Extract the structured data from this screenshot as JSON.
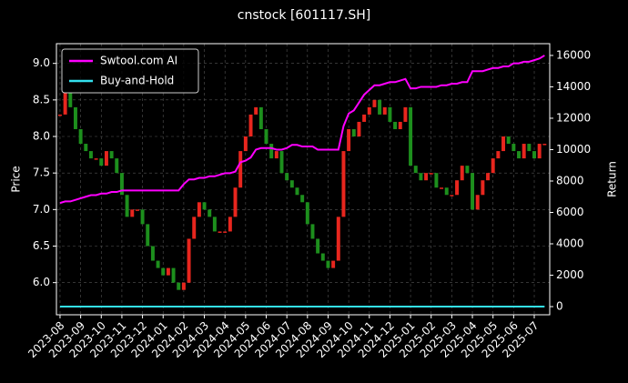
{
  "chart_data": {
    "type": "candlestick",
    "title": "cnstock [601117.SH]",
    "ylabel": "Price",
    "y2label": "Return",
    "price": {
      "values": [
        8.3,
        8.6,
        8.4,
        8.1,
        7.9,
        7.8,
        7.7,
        7.7,
        7.6,
        7.8,
        7.7,
        7.5,
        7.2,
        6.9,
        7.0,
        7.0,
        6.8,
        6.5,
        6.3,
        6.2,
        6.1,
        6.2,
        6.0,
        5.9,
        6.0,
        6.6,
        6.9,
        7.1,
        7.0,
        6.9,
        6.7,
        6.7,
        6.7,
        6.9,
        7.3,
        7.8,
        8.0,
        8.3,
        8.4,
        8.1,
        7.9,
        7.7,
        7.8,
        7.5,
        7.4,
        7.3,
        7.2,
        7.1,
        6.8,
        6.6,
        6.4,
        6.3,
        6.2,
        6.3,
        6.9,
        7.8,
        8.1,
        8.0,
        8.2,
        8.3,
        8.4,
        8.5,
        8.3,
        8.4,
        8.2,
        8.1,
        8.2,
        8.4,
        7.6,
        7.5,
        7.4,
        7.5,
        7.5,
        7.3,
        7.3,
        7.2,
        7.2,
        7.4,
        7.6,
        7.5,
        7.0,
        7.2,
        7.4,
        7.5,
        7.7,
        7.8,
        8.0,
        7.9,
        7.8,
        7.7,
        7.9,
        7.8,
        7.7,
        7.9,
        7.9
      ],
      "up_color": "#e8261e",
      "down_color": "#1d8f1d"
    },
    "series": [
      {
        "name": "Swtool.com AI",
        "color": "#ff00ff",
        "axis": "y2",
        "values": [
          6600,
          6700,
          6700,
          6800,
          6900,
          7000,
          7100,
          7100,
          7200,
          7200,
          7300,
          7300,
          7400,
          7400,
          7400,
          7400,
          7400,
          7400,
          7400,
          7400,
          7400,
          7400,
          7400,
          7400,
          7800,
          8100,
          8100,
          8200,
          8200,
          8300,
          8300,
          8400,
          8500,
          8500,
          8600,
          9200,
          9300,
          9500,
          10000,
          10100,
          10100,
          10100,
          10000,
          10000,
          10100,
          10300,
          10300,
          10200,
          10200,
          10200,
          10000,
          10000,
          10000,
          10000,
          10000,
          11500,
          12300,
          12500,
          13000,
          13500,
          13800,
          14100,
          14100,
          14200,
          14300,
          14300,
          14400,
          14500,
          13900,
          13900,
          14000,
          14000,
          14000,
          14000,
          14100,
          14100,
          14200,
          14200,
          14300,
          14300,
          15000,
          15000,
          15000,
          15100,
          15200,
          15200,
          15300,
          15300,
          15500,
          15500,
          15600,
          15600,
          15700,
          15800,
          16000
        ]
      },
      {
        "name": "Buy-and-Hold",
        "color": "#33e0ee",
        "axis": "y2",
        "values": [
          0,
          0,
          0,
          0,
          0,
          0,
          0,
          0,
          0,
          0,
          0,
          0,
          0,
          0,
          0,
          0,
          0,
          0,
          0,
          0,
          0,
          0,
          0,
          0,
          0,
          0,
          0,
          0,
          0,
          0,
          0,
          0,
          0,
          0,
          0,
          0,
          0,
          0,
          0,
          0,
          0,
          0,
          0,
          0,
          0,
          0,
          0,
          0,
          0,
          0,
          0,
          0,
          0,
          0,
          0,
          0,
          0,
          0,
          0,
          0,
          0,
          0,
          0,
          0,
          0,
          0,
          0,
          0,
          0,
          0,
          0,
          0,
          0,
          0,
          0,
          0,
          0,
          0,
          0,
          0,
          0,
          0,
          0,
          0,
          0,
          0,
          0,
          0,
          0,
          0,
          0,
          0,
          0,
          0,
          0
        ]
      }
    ],
    "xlim": [
      -0.7,
      95
    ],
    "xticks": [
      {
        "value": 0,
        "label": "2023-08"
      },
      {
        "value": 4,
        "label": "2023-09"
      },
      {
        "value": 8,
        "label": "2023-10"
      },
      {
        "value": 12,
        "label": "2023-11"
      },
      {
        "value": 16,
        "label": "2023-12"
      },
      {
        "value": 20,
        "label": "2024-01"
      },
      {
        "value": 24,
        "label": "2024-02"
      },
      {
        "value": 28,
        "label": "2024-03"
      },
      {
        "value": 32,
        "label": "2024-04"
      },
      {
        "value": 36,
        "label": "2024-05"
      },
      {
        "value": 40,
        "label": "2024-06"
      },
      {
        "value": 44,
        "label": "2024-07"
      },
      {
        "value": 48,
        "label": "2024-08"
      },
      {
        "value": 52,
        "label": "2024-09"
      },
      {
        "value": 56,
        "label": "2024-10"
      },
      {
        "value": 60,
        "label": "2024-11"
      },
      {
        "value": 64,
        "label": "2024-12"
      },
      {
        "value": 68,
        "label": "2025-01"
      },
      {
        "value": 72,
        "label": "2025-02"
      },
      {
        "value": 76,
        "label": "2025-03"
      },
      {
        "value": 80,
        "label": "2025-04"
      },
      {
        "value": 84,
        "label": "2025-05"
      },
      {
        "value": 88,
        "label": "2025-06"
      },
      {
        "value": 92,
        "label": "2025-07"
      }
    ],
    "ylim": [
      5.56,
      9.27
    ],
    "yticks": [
      {
        "value": 6,
        "label": "6.0"
      },
      {
        "value": 6.5,
        "label": "6.5"
      },
      {
        "value": 7,
        "label": "7.0"
      },
      {
        "value": 7.5,
        "label": "7.5"
      },
      {
        "value": 8,
        "label": "8.0"
      },
      {
        "value": 8.5,
        "label": "8.5"
      },
      {
        "value": 9,
        "label": "9.0"
      }
    ],
    "y2lim": [
      -520,
      16750
    ],
    "y2ticks": [
      0,
      2000,
      4000,
      6000,
      8000,
      10000,
      12000,
      14000,
      16000
    ],
    "grid": true,
    "legend": "upper left"
  }
}
